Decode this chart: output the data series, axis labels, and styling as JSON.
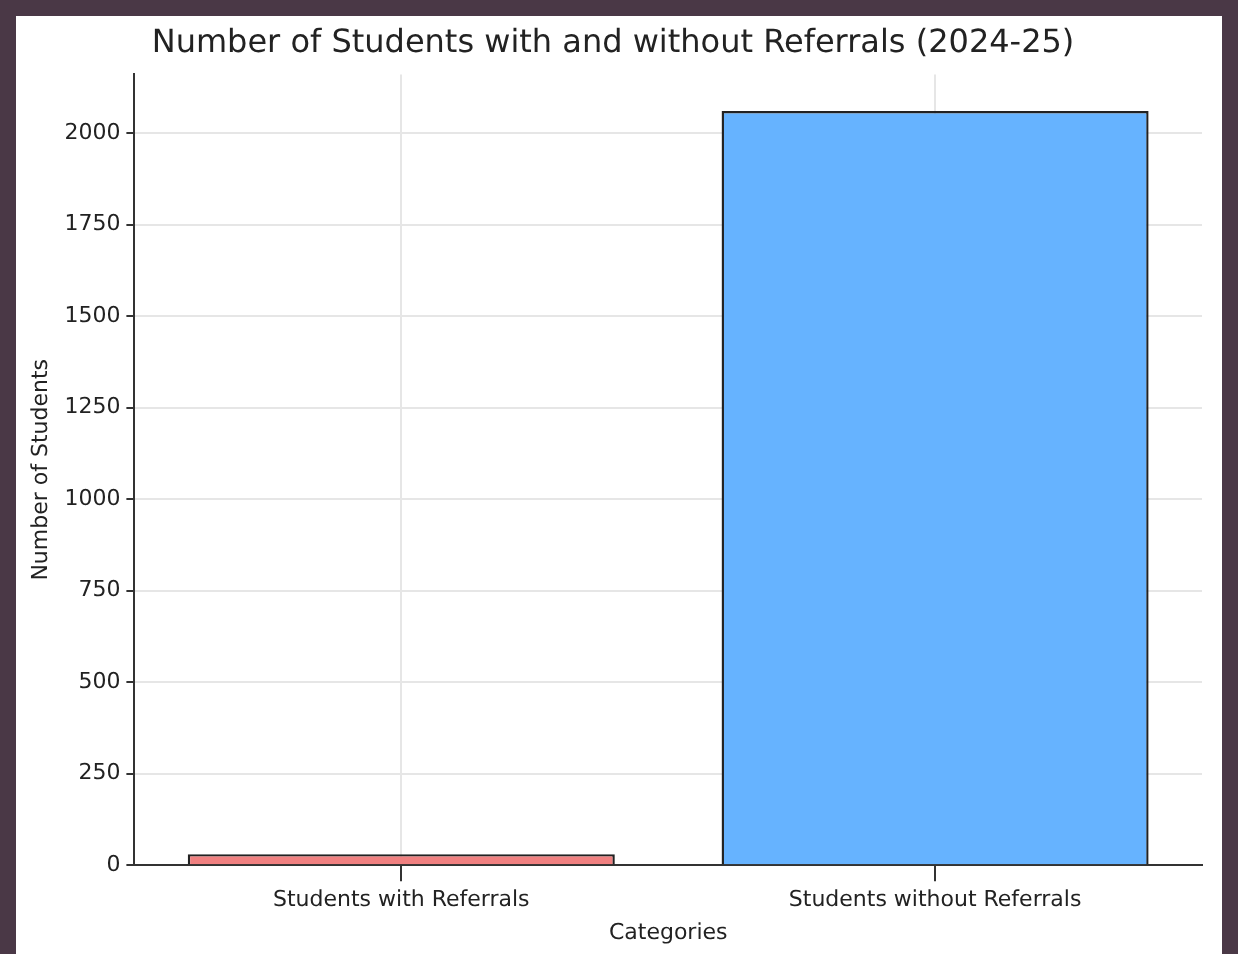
{
  "chart_data": {
    "type": "bar",
    "title": "Number of Students with and without Referrals (2024-25)",
    "xlabel": "Categories",
    "ylabel": "Number of Students",
    "categories": [
      "Students with Referrals",
      "Students without Referrals"
    ],
    "values": [
      30,
      2060
    ],
    "colors": [
      "#f08080",
      "#66b3ff"
    ],
    "ylim": [
      0,
      2160
    ],
    "yticks": [
      0,
      250,
      500,
      750,
      1000,
      1250,
      1500,
      1750,
      2000
    ],
    "grid": true
  }
}
